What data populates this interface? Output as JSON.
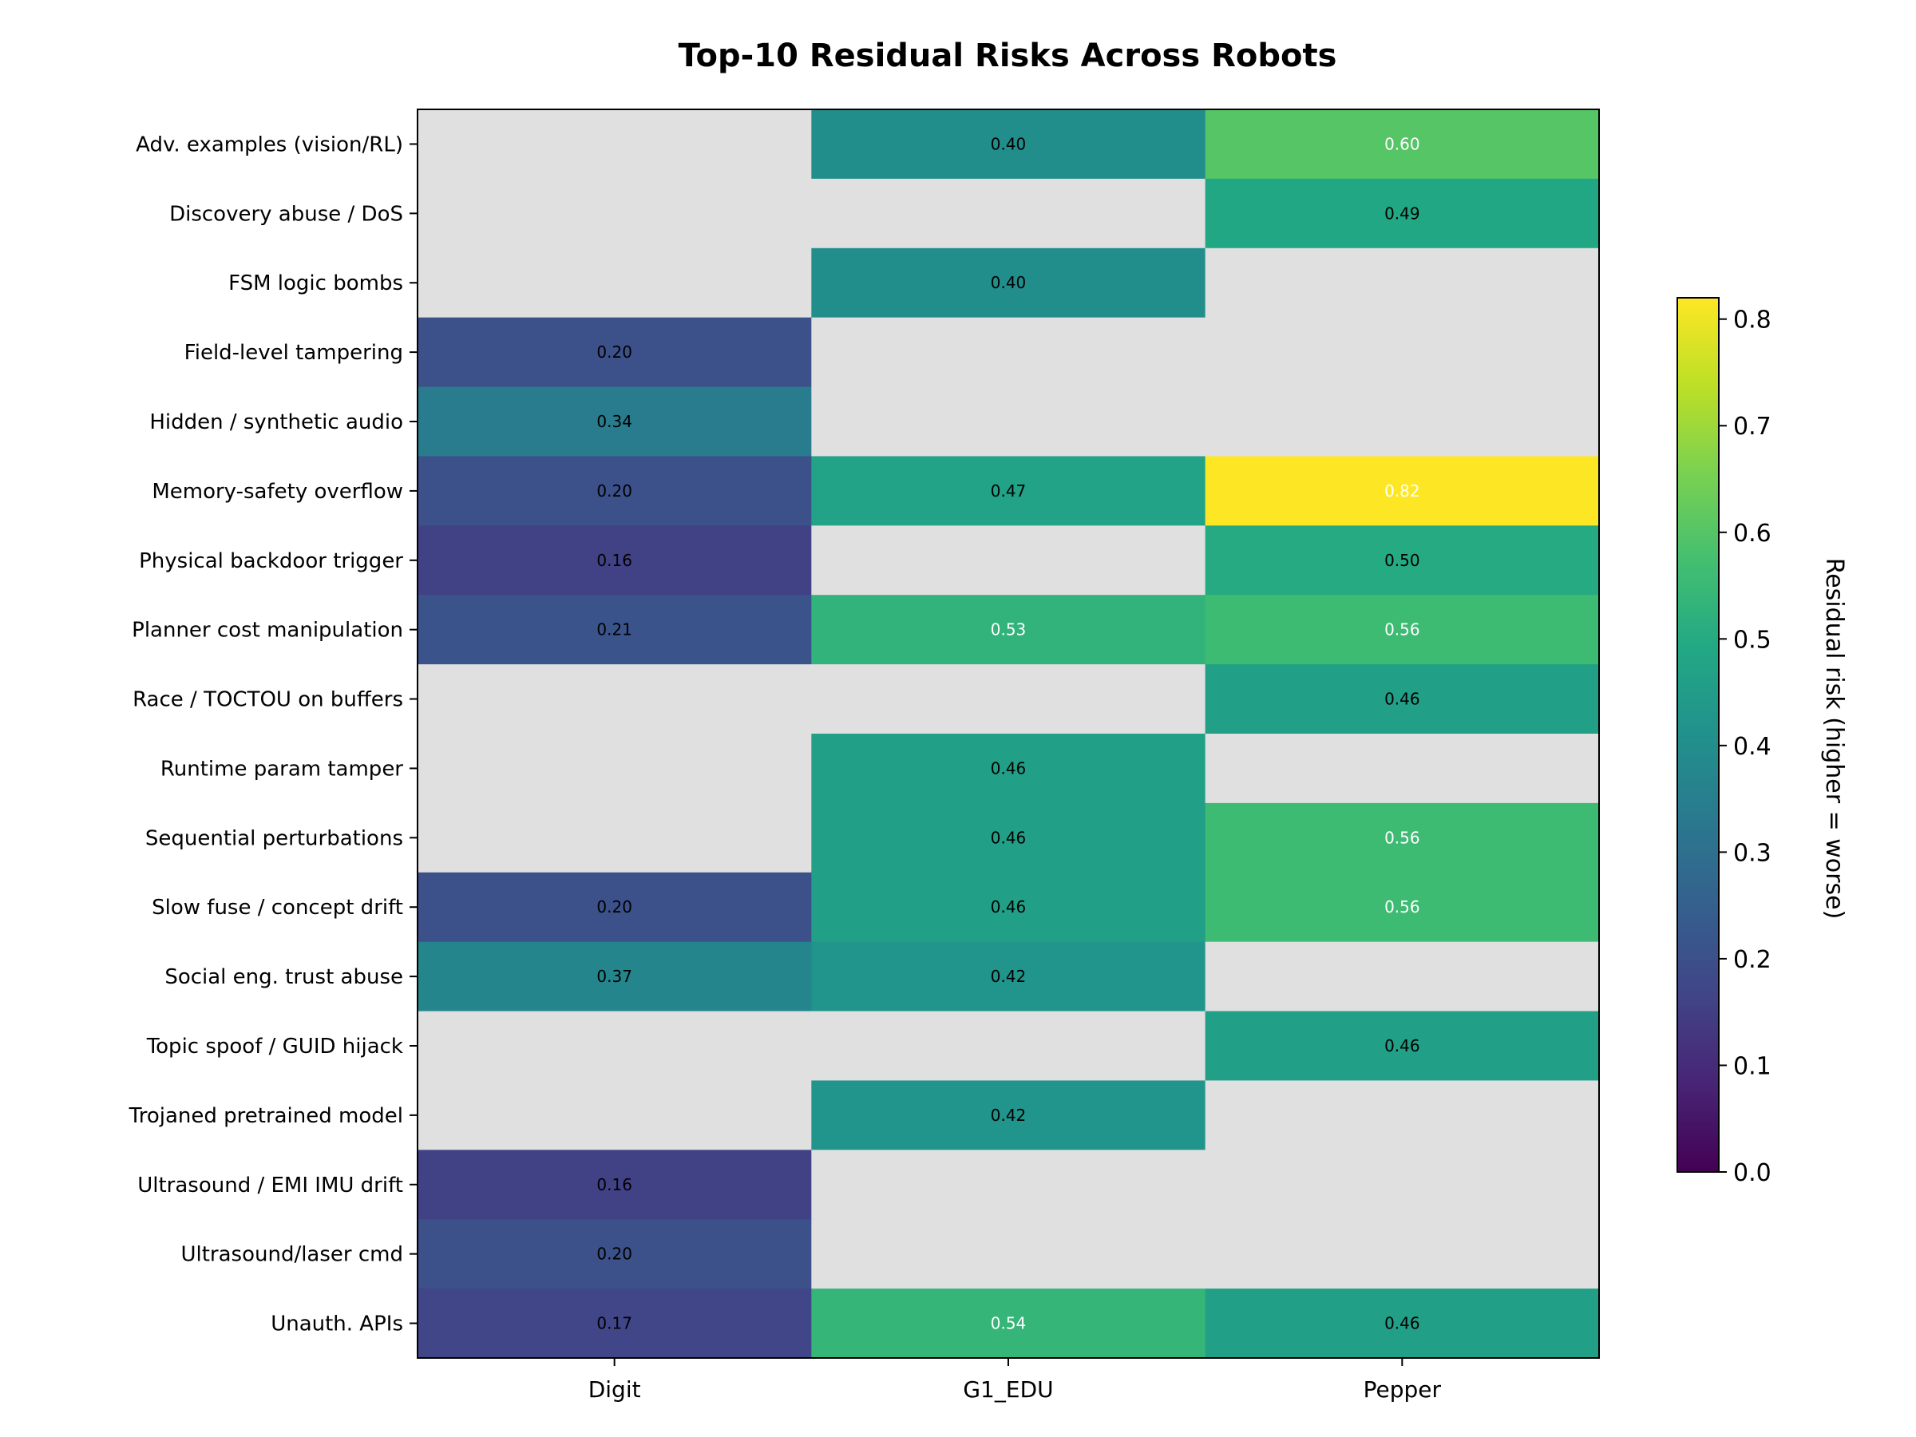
{
  "chart_data": {
    "type": "heatmap",
    "title": "Top-10 Residual Risks Across Robots",
    "xlabel": "",
    "ylabel": "",
    "columns": [
      "Digit",
      "G1_EDU",
      "Pepper"
    ],
    "rows": [
      "Adv. examples (vision/RL)",
      "Discovery abuse / DoS",
      "FSM logic bombs",
      "Field-level tampering",
      "Hidden / synthetic audio",
      "Memory-safety overflow",
      "Physical backdoor trigger",
      "Planner cost manipulation",
      "Race / TOCTOU on buffers",
      "Runtime param tamper",
      "Sequential perturbations",
      "Slow fuse / concept drift",
      "Social eng. trust abuse",
      "Topic spoof / GUID hijack",
      "Trojaned pretrained model",
      "Ultrasound / EMI IMU drift",
      "Ultrasound/laser cmd",
      "Unauth. APIs"
    ],
    "values": [
      [
        null,
        0.4,
        0.6
      ],
      [
        null,
        null,
        0.49
      ],
      [
        null,
        0.4,
        null
      ],
      [
        0.2,
        null,
        null
      ],
      [
        0.34,
        null,
        null
      ],
      [
        0.2,
        0.47,
        0.82
      ],
      [
        0.16,
        null,
        0.5
      ],
      [
        0.21,
        0.53,
        0.56
      ],
      [
        null,
        null,
        0.46
      ],
      [
        null,
        0.46,
        null
      ],
      [
        null,
        0.46,
        0.56
      ],
      [
        0.2,
        0.46,
        0.56
      ],
      [
        0.37,
        0.42,
        null
      ],
      [
        null,
        null,
        0.46
      ],
      [
        null,
        0.42,
        null
      ],
      [
        0.16,
        null,
        null
      ],
      [
        0.2,
        null,
        null
      ],
      [
        0.17,
        0.54,
        0.46
      ]
    ],
    "value_format": "0.00",
    "missing_color": "#e0e0e0",
    "colormap": "viridis",
    "colorbar": {
      "label": "Residual risk (higher = worse)",
      "range": [
        0,
        0.82
      ],
      "ticks": [
        0.0,
        0.1,
        0.2,
        0.3,
        0.4,
        0.5,
        0.6,
        0.7,
        0.8
      ],
      "tick_labels": [
        "0.0",
        "0.1",
        "0.2",
        "0.3",
        "0.4",
        "0.5",
        "0.6",
        "0.7",
        "0.8"
      ],
      "placement": "right"
    },
    "text_color_threshold": 0.5,
    "text_colors": {
      "dark_cell": "#ffffff",
      "light_cell": "#000000"
    },
    "grid": false
  }
}
